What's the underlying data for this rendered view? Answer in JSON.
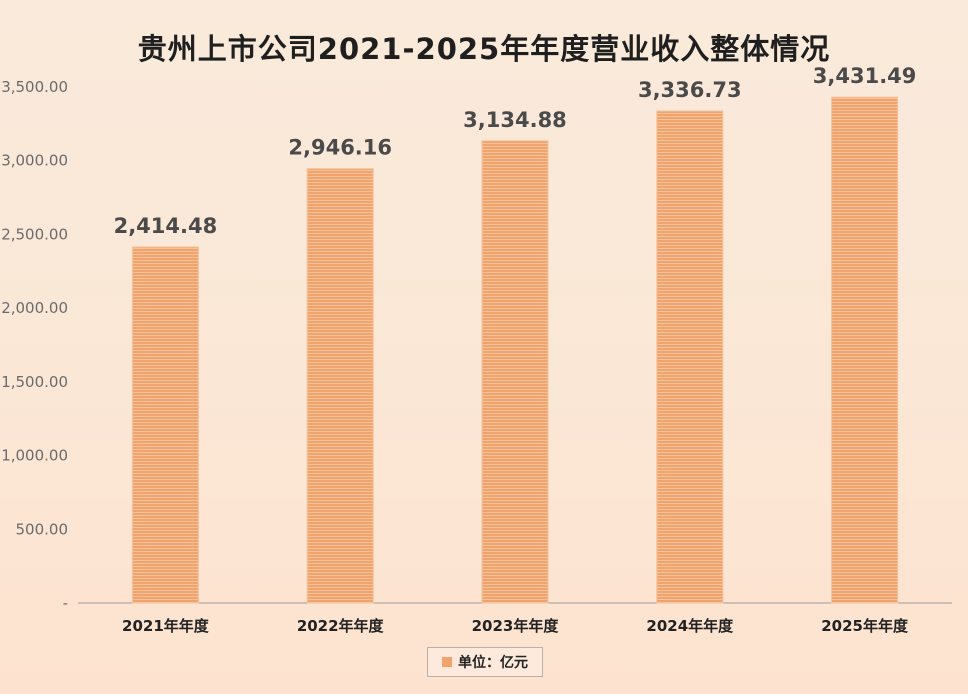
{
  "chart_data": {
    "type": "bar",
    "title": "贵州上市公司2021-2025年年度营业收入整体情况",
    "categories": [
      "2021年年度",
      "2022年年度",
      "2023年年度",
      "2024年年度",
      "2025年年度"
    ],
    "series": [
      {
        "name": "单位：亿元",
        "values": [
          2414.48,
          2946.16,
          3134.88,
          3336.73,
          3431.49
        ],
        "value_labels": [
          "2,414.48",
          "2,946.16",
          "3,134.88",
          "3,336.73",
          "3,431.49"
        ]
      }
    ],
    "y_ticks": [
      "-",
      "500.00",
      "1,000.00",
      "1,500.00",
      "2,000.00",
      "2,500.00",
      "3,000.00",
      "3,500.00"
    ],
    "ylim": [
      0,
      3500
    ],
    "xlabel": "",
    "ylabel": "",
    "grid": false,
    "legend_position": "bottom",
    "bar_color": "#f0a36a",
    "bar_stroke_color": "#f4c29c"
  }
}
